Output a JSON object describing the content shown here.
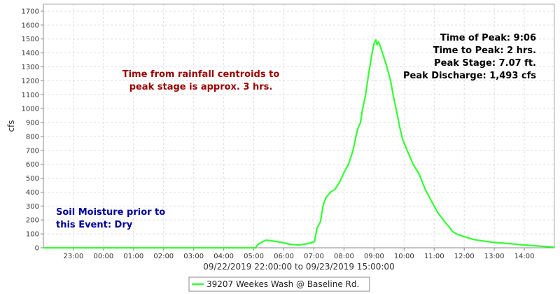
{
  "chart_data": {
    "type": "line",
    "xlabel": "09/22/2019 22:00:00 to 09/23/2019 15:00:00",
    "ylabel": "cfs",
    "xlim": [
      22.0,
      39.0
    ],
    "ylim": [
      0,
      1750
    ],
    "y_ticks": [
      0,
      100,
      200,
      300,
      400,
      500,
      600,
      700,
      800,
      900,
      1000,
      1100,
      1200,
      1300,
      1400,
      1500,
      1600,
      1700
    ],
    "x_ticks": [
      {
        "x": 23,
        "label": "23:00"
      },
      {
        "x": 24,
        "label": "00:00"
      },
      {
        "x": 25,
        "label": "01:00"
      },
      {
        "x": 26,
        "label": "02:00"
      },
      {
        "x": 27,
        "label": "03:00"
      },
      {
        "x": 28,
        "label": "04:00"
      },
      {
        "x": 29,
        "label": "05:00"
      },
      {
        "x": 30,
        "label": "06:00"
      },
      {
        "x": 31,
        "label": "07:00"
      },
      {
        "x": 32,
        "label": "08:00"
      },
      {
        "x": 33,
        "label": "09:00"
      },
      {
        "x": 34,
        "label": "10:00"
      },
      {
        "x": 35,
        "label": "11:00"
      },
      {
        "x": 36,
        "label": "12:00"
      },
      {
        "x": 37,
        "label": "13:00"
      },
      {
        "x": 38,
        "label": "14:00"
      }
    ],
    "grid": true,
    "legend_position": "bottom-center",
    "series": [
      {
        "name": "39207 Weekes Wash @ Baseline Rd.",
        "color": "#33ff33",
        "x": [
          22.0,
          25.0,
          28.0,
          29.05,
          29.15,
          29.3,
          29.4,
          29.6,
          29.9,
          30.2,
          30.5,
          30.8,
          30.98,
          31.02,
          31.1,
          31.15,
          31.22,
          31.3,
          31.4,
          31.55,
          31.7,
          31.85,
          32.0,
          32.15,
          32.3,
          32.45,
          32.55,
          32.62,
          32.72,
          32.82,
          32.92,
          33.0,
          33.06,
          33.1,
          33.15,
          33.25,
          33.4,
          33.55,
          33.65,
          33.75,
          33.85,
          33.95,
          34.1,
          34.3,
          34.5,
          34.7,
          34.9,
          35.1,
          35.3,
          35.5,
          35.6,
          35.65,
          35.8,
          36.0,
          36.3,
          36.6,
          37.0,
          37.5,
          38.0,
          38.5,
          39.0
        ],
        "y": [
          0,
          0,
          0,
          0,
          25,
          45,
          55,
          50,
          40,
          25,
          20,
          30,
          40,
          45,
          140,
          160,
          190,
          300,
          360,
          400,
          420,
          470,
          540,
          600,
          700,
          850,
          900,
          1000,
          1100,
          1250,
          1380,
          1470,
          1493,
          1460,
          1480,
          1420,
          1320,
          1200,
          1080,
          980,
          870,
          780,
          700,
          600,
          530,
          420,
          340,
          260,
          200,
          150,
          120,
          110,
          95,
          80,
          60,
          50,
          38,
          30,
          20,
          12,
          5
        ]
      }
    ],
    "annotations": {
      "lag_lines": [
        "Time from rainfall centroids to",
        "peak stage is approx. 3 hrs."
      ],
      "peak_lines": [
        "Time of Peak: 9:06",
        "Time to Peak: 2 hrs.",
        "Peak Stage: 7.07 ft.",
        "Peak Discharge: 1,493 cfs"
      ],
      "soil_lines": [
        "Soil Moisture prior to",
        "this Event: Dry"
      ]
    },
    "colors": {
      "lag_text": "#990000",
      "soil_text": "#000099",
      "peak_text": "#000000"
    }
  }
}
